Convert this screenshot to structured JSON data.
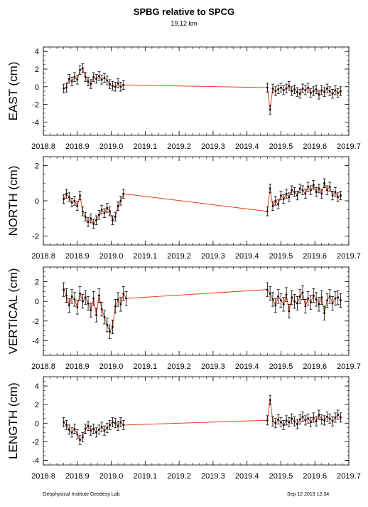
{
  "title": "SPBG relative to SPCG",
  "subtitle": "19.12 km",
  "footer": {
    "left": "Geophysical Institute Geodesy Lab",
    "right": "Sep 12 2019 12:34"
  },
  "colors": {
    "line": "#e8401c",
    "points": "#000000",
    "axes": "#000000"
  },
  "chart_data": [
    {
      "type": "scatter",
      "ylabel": "EAST (cm)",
      "xlim": [
        2018.8,
        2019.7
      ],
      "ylim": [
        -5.5,
        4.5
      ],
      "x_ticks": [
        "2018.8",
        "2018.9",
        "2019.0",
        "2019.1",
        "2019.2",
        "2019.3",
        "2019.4",
        "2019.5",
        "2019.6",
        "2019.7"
      ],
      "y_ticks": [
        -4,
        -2,
        0,
        2,
        4
      ],
      "error_bar": 0.5,
      "series": [
        {
          "x": [
            2018.86,
            2018.868,
            2018.876,
            2018.884,
            2018.892,
            2018.9,
            2018.908,
            2018.916,
            2018.924,
            2018.932,
            2018.94,
            2018.948,
            2018.956,
            2018.964,
            2018.972,
            2018.98,
            2018.988,
            2018.996,
            2019.004,
            2019.012,
            2019.02,
            2019.028,
            2019.036,
            2019.46,
            2019.468,
            2019.476,
            2019.484,
            2019.492,
            2019.5,
            2019.508,
            2019.516,
            2019.524,
            2019.532,
            2019.54,
            2019.548,
            2019.556,
            2019.564,
            2019.572,
            2019.58,
            2019.588,
            2019.596,
            2019.604,
            2019.612,
            2019.62,
            2019.628,
            2019.636,
            2019.644,
            2019.652,
            2019.66,
            2019.668,
            2019.676
          ],
          "y": [
            -0.2,
            -0.1,
            0.9,
            0.6,
            1.1,
            0.8,
            1.9,
            2.1,
            1.1,
            0.6,
            0.3,
            1.1,
            0.9,
            1.2,
            0.8,
            1.0,
            0.7,
            0.3,
            0.1,
            0.0,
            0.4,
            0.0,
            0.2,
            -0.1,
            -2.6,
            -0.2,
            -0.5,
            -0.3,
            -0.1,
            -0.4,
            -0.2,
            0.1,
            -0.5,
            -0.3,
            -0.6,
            -0.8,
            -0.2,
            -0.4,
            -0.1,
            -0.7,
            -0.5,
            -0.3,
            -0.9,
            -0.4,
            -0.6,
            -0.2,
            -0.5,
            -0.8,
            -0.4,
            -0.7,
            -0.5
          ]
        }
      ]
    },
    {
      "type": "scatter",
      "ylabel": "NORTH (cm)",
      "xlim": [
        2018.8,
        2019.7
      ],
      "ylim": [
        -2.5,
        2.5
      ],
      "x_ticks": [
        "2018.8",
        "2018.9",
        "2019.0",
        "2019.1",
        "2019.2",
        "2019.3",
        "2019.4",
        "2019.5",
        "2019.6",
        "2019.7"
      ],
      "y_ticks": [
        -2,
        0,
        2
      ],
      "error_bar": 0.25,
      "series": [
        {
          "x": [
            2018.86,
            2018.868,
            2018.876,
            2018.884,
            2018.892,
            2018.9,
            2018.908,
            2018.916,
            2018.924,
            2018.932,
            2018.94,
            2018.948,
            2018.956,
            2018.964,
            2018.972,
            2018.98,
            2018.988,
            2018.996,
            2019.004,
            2019.012,
            2019.02,
            2019.028,
            2019.036,
            2019.46,
            2019.468,
            2019.476,
            2019.484,
            2019.492,
            2019.5,
            2019.508,
            2019.516,
            2019.524,
            2019.532,
            2019.54,
            2019.548,
            2019.556,
            2019.564,
            2019.572,
            2019.58,
            2019.588,
            2019.596,
            2019.604,
            2019.612,
            2019.62,
            2019.628,
            2019.636,
            2019.644,
            2019.652,
            2019.66,
            2019.668,
            2019.676
          ],
          "y": [
            0.1,
            0.4,
            0.2,
            -0.1,
            0.0,
            -0.3,
            0.3,
            -0.6,
            -0.9,
            -1.2,
            -1.0,
            -1.3,
            -1.1,
            -0.8,
            -0.5,
            -0.7,
            -0.4,
            -0.6,
            -1.1,
            -0.9,
            -0.3,
            0.0,
            0.4,
            -0.6,
            0.7,
            -0.3,
            0.0,
            -0.2,
            0.3,
            0.1,
            0.4,
            0.2,
            0.6,
            0.5,
            0.3,
            0.7,
            0.6,
            0.4,
            0.8,
            0.6,
            0.9,
            0.5,
            0.7,
            0.4,
            1.0,
            0.6,
            0.8,
            0.3,
            0.5,
            0.2,
            0.3
          ]
        }
      ]
    },
    {
      "type": "scatter",
      "ylabel": "VERTICAL (cm)",
      "xlim": [
        2018.8,
        2019.7
      ],
      "ylim": [
        -5.5,
        3.5
      ],
      "x_ticks": [
        "2018.8",
        "2018.9",
        "2019.0",
        "2019.1",
        "2019.2",
        "2019.3",
        "2019.4",
        "2019.5",
        "2019.6",
        "2019.7"
      ],
      "y_ticks": [
        -4,
        -2,
        0,
        2
      ],
      "error_bar": 0.7,
      "series": [
        {
          "x": [
            2018.86,
            2018.868,
            2018.876,
            2018.884,
            2018.892,
            2018.9,
            2018.908,
            2018.916,
            2018.924,
            2018.932,
            2018.94,
            2018.948,
            2018.956,
            2018.964,
            2018.972,
            2018.98,
            2018.988,
            2018.996,
            2019.004,
            2019.012,
            2019.02,
            2019.028,
            2019.036,
            2019.044,
            2019.46,
            2019.468,
            2019.476,
            2019.484,
            2019.492,
            2019.5,
            2019.508,
            2019.516,
            2019.524,
            2019.532,
            2019.54,
            2019.548,
            2019.556,
            2019.564,
            2019.572,
            2019.58,
            2019.588,
            2019.596,
            2019.604,
            2019.612,
            2019.62,
            2019.628,
            2019.636,
            2019.644,
            2019.652,
            2019.66,
            2019.668,
            2019.676
          ],
          "y": [
            1.2,
            0.6,
            -0.4,
            0.5,
            0.2,
            -0.6,
            0.8,
            0.0,
            0.4,
            -0.2,
            -0.9,
            0.3,
            -1.4,
            0.6,
            -0.8,
            -1.6,
            -2.4,
            -3.1,
            -2.6,
            -0.5,
            0.2,
            -0.3,
            0.8,
            0.3,
            1.2,
            0.8,
            0.2,
            -0.4,
            0.5,
            0.1,
            -0.3,
            0.7,
            -1.0,
            0.4,
            0.0,
            -0.2,
            0.5,
            0.9,
            -0.5,
            0.3,
            -0.1,
            0.6,
            0.2,
            -0.3,
            0.4,
            -1.2,
            0.1,
            0.5,
            -0.2,
            0.3,
            0.4,
            0.1
          ]
        }
      ]
    },
    {
      "type": "scatter",
      "ylabel": "LENGTH (cm)",
      "xlim": [
        2018.8,
        2019.7
      ],
      "ylim": [
        -4.5,
        5.0
      ],
      "x_ticks": [
        "2018.8",
        "2018.9",
        "2019.0",
        "2019.1",
        "2019.2",
        "2019.3",
        "2019.4",
        "2019.5",
        "2019.6",
        "2019.7"
      ],
      "y_ticks": [
        -4,
        -2,
        0,
        2,
        4
      ],
      "error_bar": 0.5,
      "series": [
        {
          "x": [
            2018.86,
            2018.868,
            2018.876,
            2018.884,
            2018.892,
            2018.9,
            2018.908,
            2018.916,
            2018.924,
            2018.932,
            2018.94,
            2018.948,
            2018.956,
            2018.964,
            2018.972,
            2018.98,
            2018.988,
            2018.996,
            2019.004,
            2019.012,
            2019.02,
            2019.028,
            2019.036,
            2019.46,
            2019.468,
            2019.476,
            2019.484,
            2019.492,
            2019.5,
            2019.508,
            2019.516,
            2019.524,
            2019.532,
            2019.54,
            2019.548,
            2019.556,
            2019.564,
            2019.572,
            2019.58,
            2019.588,
            2019.596,
            2019.604,
            2019.612,
            2019.62,
            2019.628,
            2019.636,
            2019.644,
            2019.652,
            2019.66,
            2019.668,
            2019.676
          ],
          "y": [
            0.1,
            -0.2,
            -0.7,
            -1.0,
            -0.6,
            -1.2,
            -1.8,
            -1.5,
            -0.6,
            -0.3,
            -0.8,
            -0.6,
            -1.0,
            -0.7,
            -0.4,
            -0.8,
            -0.5,
            -0.2,
            0.1,
            0.0,
            -0.3,
            0.1,
            -0.2,
            0.3,
            2.5,
            0.2,
            0.0,
            0.4,
            0.1,
            -0.2,
            0.3,
            0.1,
            0.5,
            0.2,
            -0.1,
            0.4,
            0.7,
            0.3,
            0.5,
            0.1,
            0.6,
            0.2,
            0.9,
            0.4,
            0.3,
            0.7,
            0.5,
            0.2,
            0.6,
            0.9,
            0.6
          ]
        }
      ]
    }
  ]
}
